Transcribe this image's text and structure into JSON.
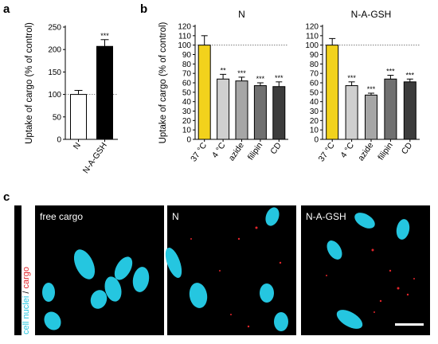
{
  "panel_labels": {
    "a": "a",
    "b": "b",
    "c": "c"
  },
  "chart_data": [
    {
      "type": "bar",
      "panel": "a",
      "ylabel": "Uptake of cargo (% of control)",
      "ylim": [
        0,
        250
      ],
      "yticks": [
        0,
        50,
        100,
        150,
        200,
        250
      ],
      "reference_line": 100,
      "categories": [
        "N",
        "N-A-GSH"
      ],
      "values": [
        100,
        207
      ],
      "errors": [
        9,
        15
      ],
      "significance": [
        "",
        "***"
      ],
      "bar_fills": [
        "#ffffff",
        "#000000"
      ]
    },
    {
      "type": "bar",
      "panel": "b",
      "title": "N",
      "ylabel": "Uptake of cargo (% of control)",
      "ylim": [
        0,
        120
      ],
      "yticks": [
        0,
        10,
        20,
        30,
        40,
        50,
        60,
        70,
        80,
        90,
        100,
        110,
        120
      ],
      "reference_line": 100,
      "categories": [
        "37 °C",
        "4 °C",
        "azide",
        "filipin",
        "CD"
      ],
      "values": [
        100,
        64,
        62,
        57,
        56
      ],
      "errors": [
        10,
        5,
        4,
        3,
        5
      ],
      "significance": [
        "",
        "**",
        "***",
        "***",
        "***"
      ],
      "bar_fills": [
        "#f2d21c",
        "#cfcfcf",
        "#a6a6a6",
        "#707070",
        "#3c3c3c"
      ]
    },
    {
      "type": "bar",
      "panel": "b",
      "title": "N-A-GSH",
      "ylim": [
        0,
        120
      ],
      "yticks": [
        0,
        10,
        20,
        30,
        40,
        50,
        60,
        70,
        80,
        90,
        100,
        110,
        120
      ],
      "reference_line": 100,
      "categories": [
        "37 °C",
        "4 °C",
        "azide",
        "filipin",
        "CD"
      ],
      "values": [
        100,
        57,
        47,
        64,
        61
      ],
      "errors": [
        7,
        4,
        2,
        4,
        3
      ],
      "significance": [
        "",
        "***",
        "***",
        "***",
        "***"
      ],
      "bar_fills": [
        "#f2d21c",
        "#cfcfcf",
        "#a6a6a6",
        "#707070",
        "#3c3c3c"
      ]
    }
  ],
  "micrographs": {
    "ylabel_part1": "cell nuclei",
    "ylabel_sep": " / ",
    "ylabel_part2": "cargo",
    "panels": [
      {
        "label": "free cargo"
      },
      {
        "label": "N"
      },
      {
        "label": "N-A-GSH"
      }
    ],
    "nucleus_color": "#25c6e0",
    "cargo_color": "#e0242a"
  }
}
